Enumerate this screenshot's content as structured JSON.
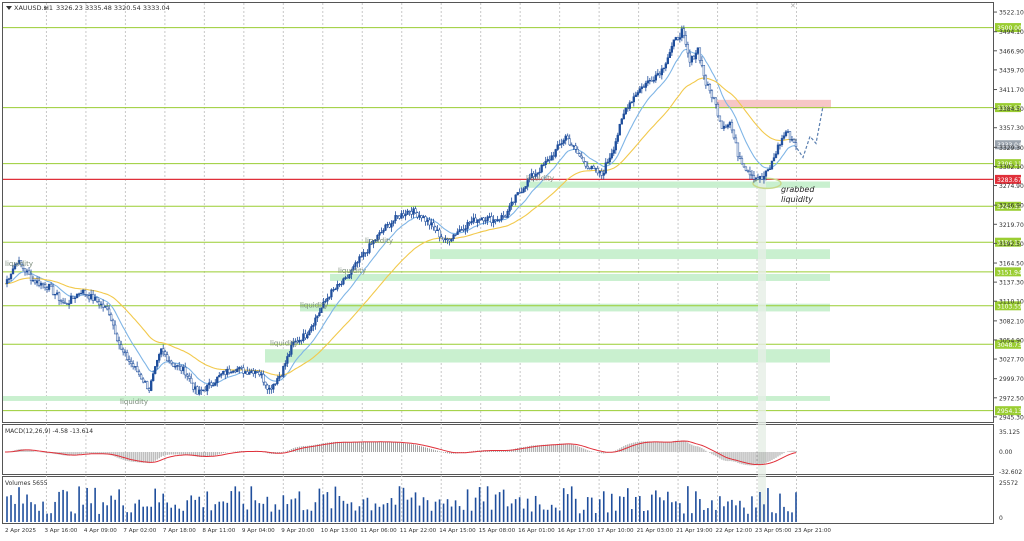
{
  "window": {
    "menu_icon": "triangle-down-icon",
    "symbol": "XAUUSD.s",
    "timeframe": "H1",
    "ohlc": "3326.23 3335.48 3320.54 3333.04"
  },
  "colors": {
    "grid": "#c8c8c8",
    "level_line": "#9acd32",
    "level_label_bg": "#9acd32",
    "red_line": "#e0303a",
    "bull": "#1f4e9c",
    "bear": "#1f4e9c",
    "ma_fast": "#7fb5e6",
    "ma_slow": "#f2c94c",
    "liquidity_zone": "#c9f0cf",
    "supply_zone": "#f7c6c6",
    "macd_hist": "#a0a0a0",
    "macd_signal": "#e0303a",
    "volume": "#1f4e9c",
    "projection": "#5a7fb0"
  },
  "price_scale": {
    "ticks": [
      "3522.10",
      "3494.10",
      "3466.90",
      "3439.70",
      "3411.70",
      "3384.50",
      "3357.30",
      "3329.30",
      "3302.10",
      "3274.90",
      "3246.90",
      "3219.70",
      "3192.50",
      "3164.50",
      "3137.30",
      "3110.10",
      "3082.10",
      "3054.90",
      "3027.70",
      "2999.70",
      "2972.50",
      "2945.30"
    ],
    "level_labels": [
      {
        "value": "3500.00",
        "kind": "green"
      },
      {
        "value": "3385.97",
        "kind": "green"
      },
      {
        "value": "3333.04",
        "kind": "current"
      },
      {
        "value": "3306.11",
        "kind": "green"
      },
      {
        "value": "3283.67",
        "kind": "red"
      },
      {
        "value": "3245.35",
        "kind": "green"
      },
      {
        "value": "3194.17",
        "kind": "green"
      },
      {
        "value": "3151.94",
        "kind": "green"
      },
      {
        "value": "3103.55",
        "kind": "green"
      },
      {
        "value": "3048.73",
        "kind": "green"
      },
      {
        "value": "2954.13",
        "kind": "green"
      }
    ]
  },
  "annotations": {
    "liquidity_labels": [
      "liquidity",
      "liquidity",
      "liquidity",
      "liquidity",
      "liquidity",
      "liquidity",
      "liquidity"
    ],
    "grabbed_line1": "grabbed",
    "grabbed_line2": "liquidity"
  },
  "macd": {
    "label": "MACD(12,26,9) -4.58 -13.614",
    "ticks": [
      "35.125",
      "0.00",
      "-32.602"
    ]
  },
  "volumes": {
    "label": "Volumes 5655",
    "ticks": [
      "25572",
      "0"
    ]
  },
  "time_axis": [
    "2 Apr 2025",
    "3 Apr 16:00",
    "4 Apr 09:00",
    "7 Apr 02:00",
    "7 Apr 18:00",
    "8 Apr 11:00",
    "9 Apr 04:00",
    "9 Apr 20:00",
    "10 Apr 13:00",
    "11 Apr 06:00",
    "11 Apr 22:00",
    "14 Apr 15:00",
    "15 Apr 08:00",
    "16 Apr 01:00",
    "16 Apr 17:00",
    "17 Apr 10:00",
    "21 Apr 03:00",
    "21 Apr 19:00",
    "22 Apr 12:00",
    "23 Apr 05:00",
    "23 Apr 21:00"
  ]
}
